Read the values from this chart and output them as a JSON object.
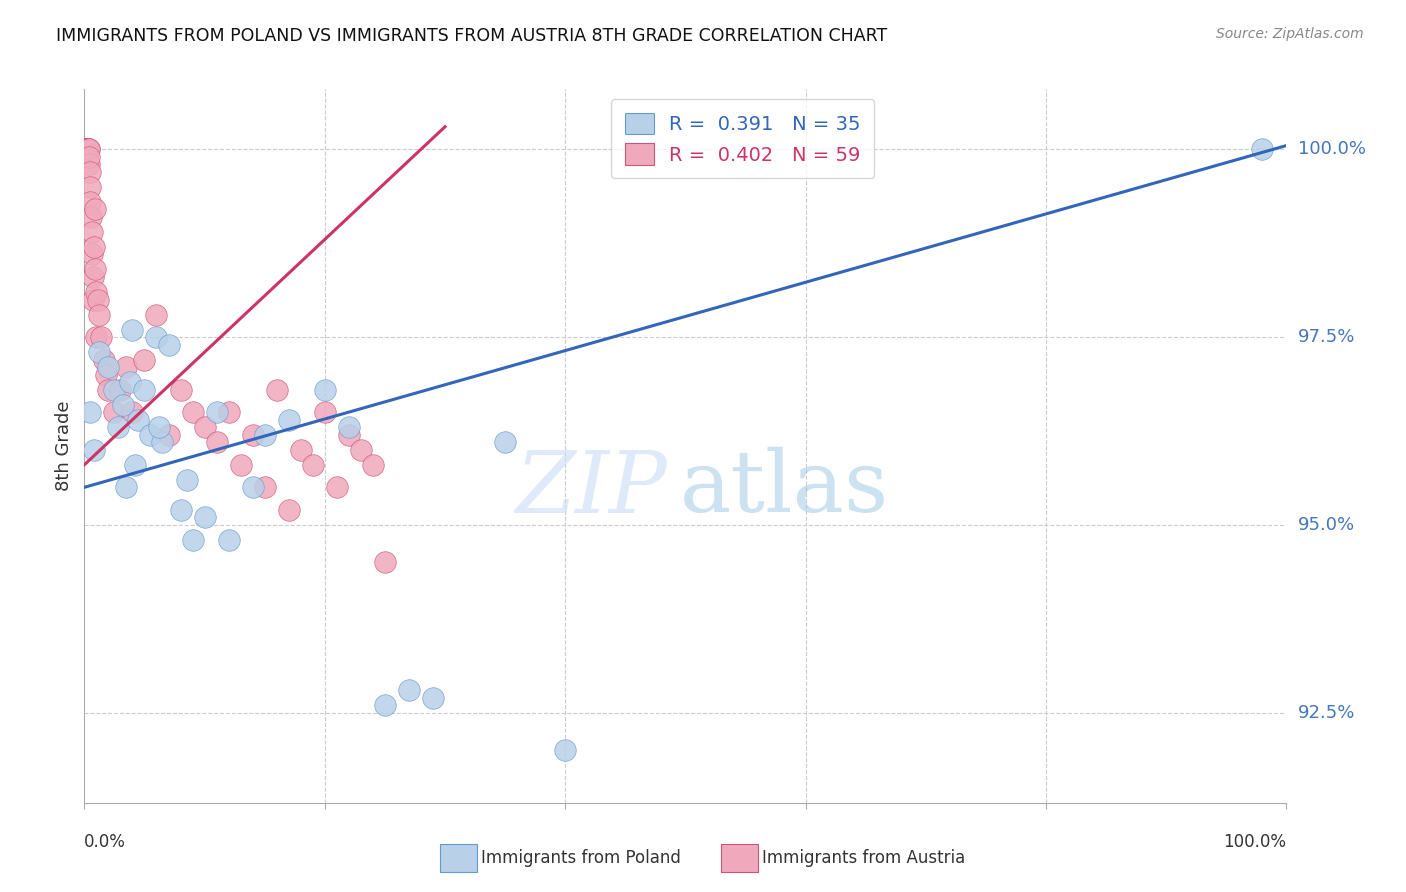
{
  "title": "IMMIGRANTS FROM POLAND VS IMMIGRANTS FROM AUSTRIA 8TH GRADE CORRELATION CHART",
  "source": "Source: ZipAtlas.com",
  "ylabel": "8th Grade",
  "y_ticks": [
    92.5,
    95.0,
    97.5,
    100.0
  ],
  "y_tick_labels": [
    "92.5%",
    "95.0%",
    "97.5%",
    "100.0%"
  ],
  "xlim": [
    0.0,
    100.0
  ],
  "ylim": [
    91.3,
    100.8
  ],
  "poland_fill": "#b8d0e8",
  "poland_edge": "#6699cc",
  "austria_fill": "#f0a8bc",
  "austria_edge": "#cc5577",
  "trend_poland_color": "#3366bb",
  "trend_austria_color": "#cc3366",
  "legend_poland_R": "0.391",
  "legend_poland_N": "35",
  "legend_austria_R": "0.402",
  "legend_austria_N": "59",
  "tick_color": "#4477bb",
  "poland_x": [
    0.5,
    0.8,
    1.2,
    2.0,
    2.5,
    2.8,
    3.2,
    3.8,
    4.0,
    4.5,
    5.0,
    5.5,
    6.0,
    6.5,
    7.0,
    8.0,
    9.0,
    10.0,
    11.0,
    12.0,
    14.0,
    15.0,
    17.0,
    20.0,
    22.0,
    25.0,
    27.0,
    29.0,
    35.0,
    40.0,
    98.0,
    3.5,
    4.2,
    6.2,
    8.5
  ],
  "poland_y": [
    96.5,
    96.0,
    97.3,
    97.1,
    96.8,
    96.3,
    96.6,
    96.9,
    97.6,
    96.4,
    96.8,
    96.2,
    97.5,
    96.1,
    97.4,
    95.2,
    94.8,
    95.1,
    96.5,
    94.8,
    95.5,
    96.2,
    96.4,
    96.8,
    96.3,
    92.6,
    92.8,
    92.7,
    96.1,
    92.0,
    100.0,
    95.5,
    95.8,
    96.3,
    95.6
  ],
  "austria_x": [
    0.05,
    0.1,
    0.12,
    0.15,
    0.18,
    0.2,
    0.22,
    0.25,
    0.28,
    0.3,
    0.32,
    0.35,
    0.38,
    0.4,
    0.42,
    0.45,
    0.48,
    0.5,
    0.55,
    0.6,
    0.65,
    0.7,
    0.75,
    0.8,
    0.85,
    0.9,
    0.95,
    1.0,
    1.1,
    1.2,
    1.4,
    1.6,
    1.8,
    2.0,
    2.5,
    3.0,
    3.5,
    4.0,
    5.0,
    6.0,
    7.0,
    8.0,
    9.0,
    10.0,
    11.0,
    12.0,
    13.0,
    14.0,
    15.0,
    16.0,
    17.0,
    18.0,
    19.0,
    20.0,
    21.0,
    22.0,
    23.0,
    24.0,
    25.0
  ],
  "austria_y": [
    100.0,
    100.0,
    100.0,
    100.0,
    100.0,
    100.0,
    100.0,
    100.0,
    100.0,
    100.0,
    100.0,
    100.0,
    100.0,
    99.8,
    99.9,
    99.7,
    99.5,
    99.3,
    99.1,
    98.9,
    98.6,
    98.3,
    98.0,
    98.7,
    99.2,
    98.4,
    98.1,
    97.5,
    98.0,
    97.8,
    97.5,
    97.2,
    97.0,
    96.8,
    96.5,
    96.8,
    97.1,
    96.5,
    97.2,
    97.8,
    96.2,
    96.8,
    96.5,
    96.3,
    96.1,
    96.5,
    95.8,
    96.2,
    95.5,
    96.8,
    95.2,
    96.0,
    95.8,
    96.5,
    95.5,
    96.2,
    96.0,
    95.8,
    94.5
  ]
}
